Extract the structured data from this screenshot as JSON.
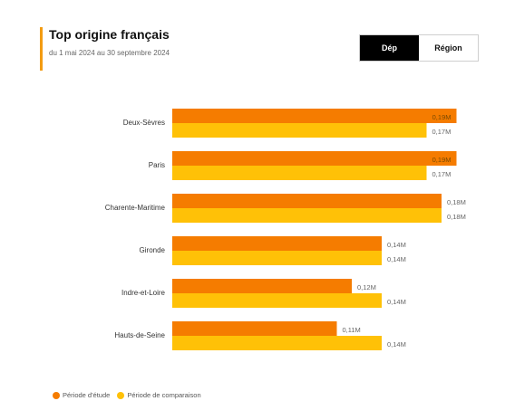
{
  "header": {
    "title": "Top origine français",
    "subtitle": "du 1 mai 2024 au 30 septembre 2024"
  },
  "toggle": {
    "options": [
      {
        "label": "Dép",
        "active": true
      },
      {
        "label": "Région",
        "active": false
      }
    ]
  },
  "colors": {
    "accent": "#f39c12",
    "study": "#f57c00",
    "comparison": "#ffc107"
  },
  "chart_data": {
    "type": "bar",
    "orientation": "horizontal",
    "categories": [
      "Deux-Sèvres",
      "Paris",
      "Charente-Maritime",
      "Gironde",
      "Indre-et-Loire",
      "Hauts-de-Seine"
    ],
    "series": [
      {
        "name": "Période d'étude",
        "values": [
          0.19,
          0.19,
          0.18,
          0.14,
          0.12,
          0.11
        ],
        "labels": [
          "0,19M",
          "0,19M",
          "0,18M",
          "0,14M",
          "0,12M",
          "0,11M"
        ]
      },
      {
        "name": "Période de comparaison",
        "values": [
          0.17,
          0.17,
          0.18,
          0.14,
          0.14,
          0.14
        ],
        "labels": [
          "0,17M",
          "0,17M",
          "0,18M",
          "0,14M",
          "0,14M",
          "0,14M"
        ]
      }
    ],
    "xlim": [
      0,
      0.2
    ],
    "legend": "bottom-left",
    "grid": false
  }
}
